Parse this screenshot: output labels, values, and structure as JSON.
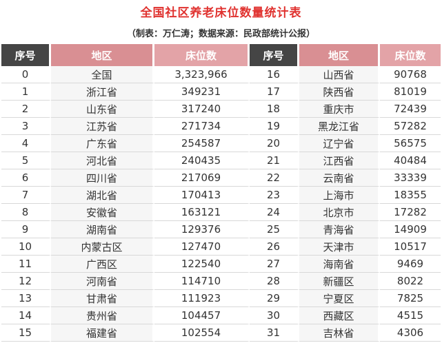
{
  "title": "全国社区养老床位数量统计表",
  "subtitle": "（制表：万仁涛；数据来源：民政部统计公报）",
  "headers": [
    "序号",
    "地区",
    "床位数",
    "序号",
    "地区",
    "床位数"
  ],
  "rows": [
    [
      "0",
      "全国",
      "3,323,966",
      "16",
      "山西省",
      "90768"
    ],
    [
      "1",
      "浙江省",
      "349231",
      "17",
      "陕西省",
      "81019"
    ],
    [
      "2",
      "山东省",
      "317240",
      "18",
      "重庆市",
      "72439"
    ],
    [
      "3",
      "江苏省",
      "271734",
      "19",
      "黑龙江省",
      "57282"
    ],
    [
      "4",
      "广东省",
      "254587",
      "20",
      "辽宁省",
      "56575"
    ],
    [
      "5",
      "河北省",
      "240435",
      "21",
      "江西省",
      "40484"
    ],
    [
      "6",
      "四川省",
      "217069",
      "22",
      "云南省",
      "33339"
    ],
    [
      "7",
      "湖北省",
      "170413",
      "23",
      "上海市",
      "18355"
    ],
    [
      "8",
      "安徽省",
      "163121",
      "24",
      "北京市",
      "17282"
    ],
    [
      "9",
      "湖南省",
      "129376",
      "25",
      "青海省",
      "14909"
    ],
    [
      "10",
      "内蒙古区",
      "127470",
      "26",
      "天津市",
      "10517"
    ],
    [
      "11",
      "广西区",
      "122540",
      "27",
      "海南省",
      "9469"
    ],
    [
      "12",
      "河南省",
      "114710",
      "28",
      "新疆区",
      "8022"
    ],
    [
      "13",
      "甘肃省",
      "111923",
      "29",
      "宁夏区",
      "7825"
    ],
    [
      "14",
      "贵州省",
      "104457",
      "30",
      "西藏区",
      "4515"
    ],
    [
      "15",
      "福建省",
      "102554",
      "31",
      "吉林省",
      "4306"
    ]
  ],
  "colors": {
    "title": "#e0322f",
    "header_dark": "#454545",
    "header_pink": "#d98f93",
    "row_band": "#f6f6f6"
  }
}
